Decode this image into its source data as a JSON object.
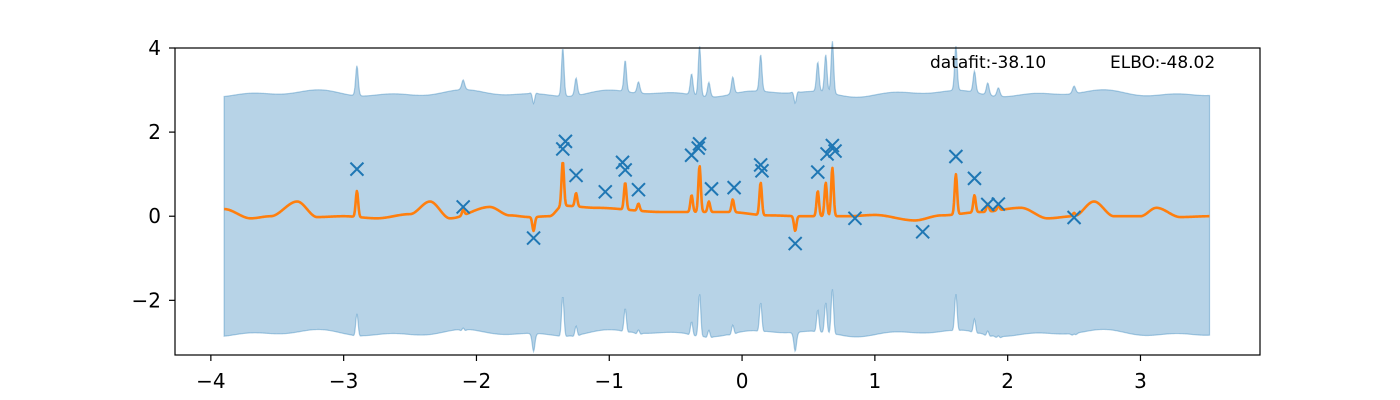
{
  "chart_data": {
    "type": "line",
    "title": "",
    "xlabel": "",
    "ylabel": "",
    "xlim": [
      -4.27,
      3.9
    ],
    "ylim": [
      -3.3,
      4.0
    ],
    "xticks": [
      -4,
      -3,
      -2,
      -1,
      0,
      1,
      2,
      3
    ],
    "yticks": [
      -2,
      0,
      2,
      4
    ],
    "xtick_labels": [
      "−4",
      "−3",
      "−2",
      "−1",
      "0",
      "1",
      "2",
      "3"
    ],
    "ytick_labels": [
      "−2",
      "0",
      "2",
      "4"
    ],
    "grid": false,
    "annotations": {
      "datafit": "datafit:-38.10",
      "elbo": "ELBO:-48.02"
    },
    "colors": {
      "mean": "#ff7f0e",
      "band": "#1f77b4",
      "points": "#1f77b4"
    },
    "mean_baseline": [
      [
        -3.9,
        0.17
      ],
      [
        -3.7,
        -0.05
      ],
      [
        -3.55,
        0.0
      ],
      [
        -3.35,
        0.35
      ],
      [
        -3.2,
        -0.02
      ],
      [
        -3.0,
        0.0
      ],
      [
        -2.75,
        -0.05
      ],
      [
        -2.5,
        0.05
      ],
      [
        -2.35,
        0.35
      ],
      [
        -2.2,
        -0.05
      ],
      [
        -1.9,
        0.22
      ],
      [
        -1.75,
        0.02
      ],
      [
        -1.6,
        -0.02
      ],
      [
        -1.45,
        0.0
      ],
      [
        -1.35,
        0.25
      ],
      [
        -1.1,
        0.2
      ],
      [
        -0.6,
        0.1
      ],
      [
        -0.1,
        0.1
      ],
      [
        0.2,
        0.02
      ],
      [
        0.45,
        0.0
      ],
      [
        0.8,
        0.0
      ],
      [
        1.0,
        0.03
      ],
      [
        1.3,
        -0.1
      ],
      [
        1.5,
        0.02
      ],
      [
        1.8,
        0.1
      ],
      [
        2.1,
        0.2
      ],
      [
        2.3,
        -0.05
      ],
      [
        2.5,
        0.0
      ],
      [
        2.65,
        0.35
      ],
      [
        2.8,
        0.0
      ],
      [
        3.0,
        0.0
      ],
      [
        3.12,
        0.2
      ],
      [
        3.3,
        -0.02
      ],
      [
        3.52,
        0.0
      ]
    ],
    "mean_spikes": [
      {
        "x": -2.9,
        "peak": 0.6
      },
      {
        "x": -2.1,
        "peak": 0.15
      },
      {
        "x": -1.57,
        "peak": -0.35
      },
      {
        "x": -1.35,
        "peak": 1.3
      },
      {
        "x": -1.25,
        "peak": 0.55
      },
      {
        "x": -0.88,
        "peak": 0.8
      },
      {
        "x": -0.78,
        "peak": 0.3
      },
      {
        "x": -0.38,
        "peak": 0.5
      },
      {
        "x": -0.32,
        "peak": 1.2
      },
      {
        "x": -0.25,
        "peak": 0.35
      },
      {
        "x": -0.07,
        "peak": 0.4
      },
      {
        "x": 0.14,
        "peak": 0.8
      },
      {
        "x": 0.4,
        "peak": -0.35
      },
      {
        "x": 0.57,
        "peak": 0.6
      },
      {
        "x": 0.63,
        "peak": 0.8
      },
      {
        "x": 0.68,
        "peak": 1.15
      },
      {
        "x": 1.61,
        "peak": 1.0
      },
      {
        "x": 1.75,
        "peak": 0.5
      },
      {
        "x": 1.85,
        "peak": 0.3
      },
      {
        "x": 1.93,
        "peak": 0.25
      },
      {
        "x": 2.5,
        "peak": 0.08
      }
    ],
    "band_upper_base": 2.92,
    "band_lower_base": -2.78,
    "band_x_range": [
      -3.9,
      3.52
    ],
    "points": {
      "x": [
        -2.9,
        -2.1,
        -1.57,
        -1.35,
        -1.33,
        -1.25,
        -1.03,
        -0.9,
        -0.88,
        -0.78,
        -0.38,
        -0.33,
        -0.32,
        -0.23,
        -0.06,
        0.14,
        0.15,
        0.4,
        0.57,
        0.64,
        0.68,
        0.7,
        0.85,
        1.36,
        1.61,
        1.75,
        1.85,
        1.93,
        2.5
      ],
      "y": [
        1.12,
        0.22,
        -0.52,
        1.6,
        1.78,
        0.97,
        0.58,
        1.28,
        1.1,
        0.63,
        1.45,
        1.62,
        1.72,
        0.65,
        0.68,
        1.22,
        1.08,
        -0.65,
        1.05,
        1.48,
        1.68,
        1.55,
        -0.05,
        -0.37,
        1.42,
        0.9,
        0.28,
        0.29,
        -0.03
      ]
    }
  }
}
